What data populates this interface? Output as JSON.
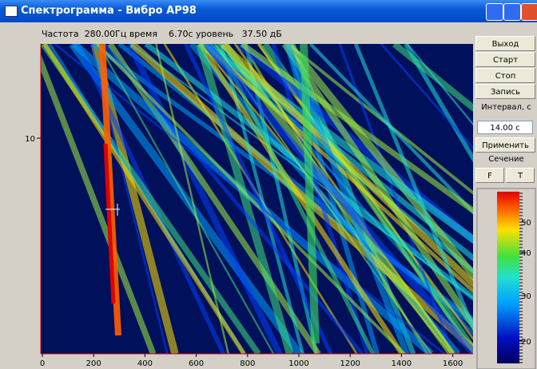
{
  "window": {
    "title": "Спектрограмма - Вибро АР98"
  },
  "status": {
    "frequency_label": "Частота",
    "frequency": "280.00Гц",
    "time_label": "время",
    "time": "6.70с",
    "level_label": "уровень",
    "level": "37.50 дБ"
  },
  "buttons": [
    "Выход",
    "Старт",
    "Стоп",
    "Запись"
  ],
  "interval": {
    "label": "Интервал, с",
    "value": "14.00 с"
  },
  "apply": "Применить",
  "section": "Сечение",
  "modes": [
    "F",
    "T"
  ],
  "plot": {
    "x_ticks": [
      0,
      200,
      400,
      600,
      800,
      1000,
      1200,
      1400,
      1600
    ],
    "y_ticks": [
      10
    ]
  },
  "colorbar": {
    "ticks": [
      50,
      40,
      30,
      20
    ]
  }
}
